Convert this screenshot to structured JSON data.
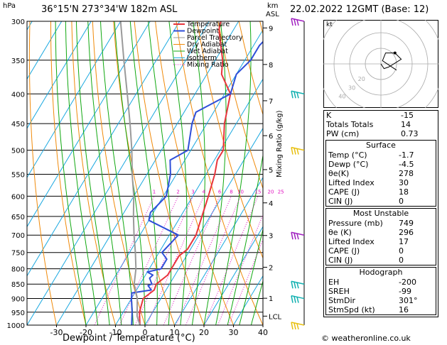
{
  "header": {
    "location": "36°15'N  273°34'W  182m  ASL",
    "datetime": "22.02.2022  12GMT  (Base: 12)",
    "unit_left": "hPa",
    "unit_right_top": "km",
    "unit_right_bottom": "ASL",
    "xlabel": "Dewpoint / Temperature (°C)",
    "ylabel_right": "Mixing Ratio (g/kg)",
    "copyright": "© weatheronline.co.uk"
  },
  "chart_data": {
    "type": "line",
    "title": "",
    "xlabel": "Dewpoint / Temperature (°C)",
    "ylabel": "hPa",
    "x_ticks": [
      -30,
      -20,
      -10,
      0,
      10,
      20,
      30,
      40
    ],
    "y_ticks": [
      300,
      350,
      400,
      450,
      500,
      550,
      600,
      650,
      700,
      750,
      800,
      850,
      900,
      950,
      1000
    ],
    "xlim": [
      -40,
      40
    ],
    "ylim": [
      1000,
      300
    ],
    "y_scale": "log",
    "km_ticks": [
      {
        "km": "9",
        "p": 308
      },
      {
        "km": "8",
        "p": 356
      },
      {
        "km": "7",
        "p": 411
      },
      {
        "km": "6",
        "p": 472
      },
      {
        "km": "5",
        "p": 540
      },
      {
        "km": "4",
        "p": 616
      },
      {
        "km": "3",
        "p": 701
      },
      {
        "km": "2",
        "p": 795
      },
      {
        "km": "1",
        "p": 899
      },
      {
        "km": "LCL",
        "p": 965
      }
    ],
    "mixing_ratio_labels": [
      "1",
      "2",
      "3",
      "4",
      "6",
      "8",
      "10",
      "15",
      "20",
      "25"
    ],
    "mixing_ratio_values": [
      1,
      2,
      3,
      4,
      6,
      8,
      10,
      15,
      20,
      25
    ],
    "legend": [
      {
        "name": "Temperature",
        "color": "#e8343c"
      },
      {
        "name": "Dewpoint",
        "color": "#2e4ed8"
      },
      {
        "name": "Parcel Trajectory",
        "color": "#9a9a9a"
      },
      {
        "name": "Dry Adiabat",
        "color": "#f08a0a"
      },
      {
        "name": "Wet Adiabat",
        "color": "#10a810"
      },
      {
        "name": "Isotherm",
        "color": "#1aa8e0"
      },
      {
        "name": "Mixing Ratio",
        "color": "#e010c0"
      }
    ],
    "legend_placement": "top-left",
    "series": [
      {
        "name": "Temperature",
        "points": [
          [
            -1.7,
            1000
          ],
          [
            -4.5,
            950
          ],
          [
            -6,
            900
          ],
          [
            -4,
            870
          ],
          [
            -4.5,
            850
          ],
          [
            -2.5,
            820
          ],
          [
            -2.5,
            800
          ],
          [
            -2.5,
            760
          ],
          [
            -1,
            740
          ],
          [
            -1,
            700
          ],
          [
            -2.8,
            650
          ],
          [
            -4.7,
            600
          ],
          [
            -7,
            550
          ],
          [
            -9,
            520
          ],
          [
            -9,
            500
          ],
          [
            -14,
            450
          ],
          [
            -18,
            400
          ],
          [
            -25,
            370
          ],
          [
            -27.5,
            350
          ],
          [
            -35,
            310
          ],
          [
            -36,
            300
          ]
        ]
      },
      {
        "name": "Dewpoint",
        "points": [
          [
            -4.5,
            1000
          ],
          [
            -7,
            950
          ],
          [
            -10,
            900
          ],
          [
            -11,
            880
          ],
          [
            -5,
            870
          ],
          [
            -7,
            855
          ],
          [
            -6,
            850
          ],
          [
            -8,
            830
          ],
          [
            -7.5,
            820
          ],
          [
            -10,
            810
          ],
          [
            -6,
            800
          ],
          [
            -6,
            770
          ],
          [
            -9,
            750
          ],
          [
            -7,
            700
          ],
          [
            -20,
            660
          ],
          [
            -21,
            640
          ],
          [
            -19,
            600
          ],
          [
            -22,
            550
          ],
          [
            -25,
            520
          ],
          [
            -24,
            515
          ],
          [
            -21,
            500
          ],
          [
            -25,
            450
          ],
          [
            -26,
            430
          ],
          [
            -18,
            400
          ],
          [
            -20,
            370
          ],
          [
            -18,
            350
          ],
          [
            -18,
            330
          ],
          [
            -15,
            300
          ]
        ]
      },
      {
        "name": "Parcel Trajectory",
        "points": [
          [
            -1.7,
            1000
          ],
          [
            -4.5,
            965
          ],
          [
            -8,
            900
          ],
          [
            -12,
            850
          ],
          [
            -14.5,
            800
          ],
          [
            -18,
            750
          ],
          [
            -22,
            700
          ],
          [
            -26,
            650
          ],
          [
            -30,
            600
          ],
          [
            -35,
            550
          ],
          [
            -40,
            500
          ],
          [
            -46,
            450
          ],
          [
            -53,
            400
          ],
          [
            -61,
            350
          ],
          [
            -70,
            300
          ]
        ]
      }
    ]
  },
  "hodograph": {
    "label": "kt",
    "ring_labels": [
      "20",
      "30",
      "40"
    ],
    "points": [
      [
        0,
        0
      ],
      [
        2,
        -3
      ],
      [
        5,
        -2
      ],
      [
        13,
        3
      ],
      [
        9,
        7
      ],
      [
        3,
        7
      ],
      [
        1,
        2
      ],
      [
        10,
        -4
      ]
    ]
  },
  "wind_barbs": {
    "levels_hpa": [
      300,
      400,
      500,
      700,
      850,
      900,
      1000
    ],
    "colors": [
      "#a020c0",
      "#10b0b0",
      "#e8c010",
      "#a020c0",
      "#10b0b0",
      "#10b0b0",
      "#e8c010"
    ]
  },
  "indices": {
    "k_label": "K",
    "k_value": "-15",
    "tt_label": "Totals Totals",
    "tt_value": "14",
    "pw_label": "PW (cm)",
    "pw_value": "0.73"
  },
  "surface": {
    "title": "Surface",
    "rows": [
      {
        "label": "Temp (°C)",
        "value": "-1.7"
      },
      {
        "label": "Dewp (°C)",
        "value": "-4.5"
      },
      {
        "label": "θe(K)",
        "value": "278"
      },
      {
        "label": "Lifted Index",
        "value": "30"
      },
      {
        "label": "CAPE (J)",
        "value": "18"
      },
      {
        "label": "CIN (J)",
        "value": "0"
      }
    ]
  },
  "most_unstable": {
    "title": "Most Unstable",
    "rows": [
      {
        "label": "Pressure (mb)",
        "value": "749"
      },
      {
        "label": "θe (K)",
        "value": "296"
      },
      {
        "label": "Lifted Index",
        "value": "17"
      },
      {
        "label": "CAPE (J)",
        "value": "0"
      },
      {
        "label": "CIN (J)",
        "value": "0"
      }
    ]
  },
  "hodograph_table": {
    "title": "Hodograph",
    "rows": [
      {
        "label": "EH",
        "value": "-200"
      },
      {
        "label": "SREH",
        "value": "-99"
      },
      {
        "label": "StmDir",
        "value": "301°"
      },
      {
        "label": "StmSpd (kt)",
        "value": "16"
      }
    ]
  }
}
